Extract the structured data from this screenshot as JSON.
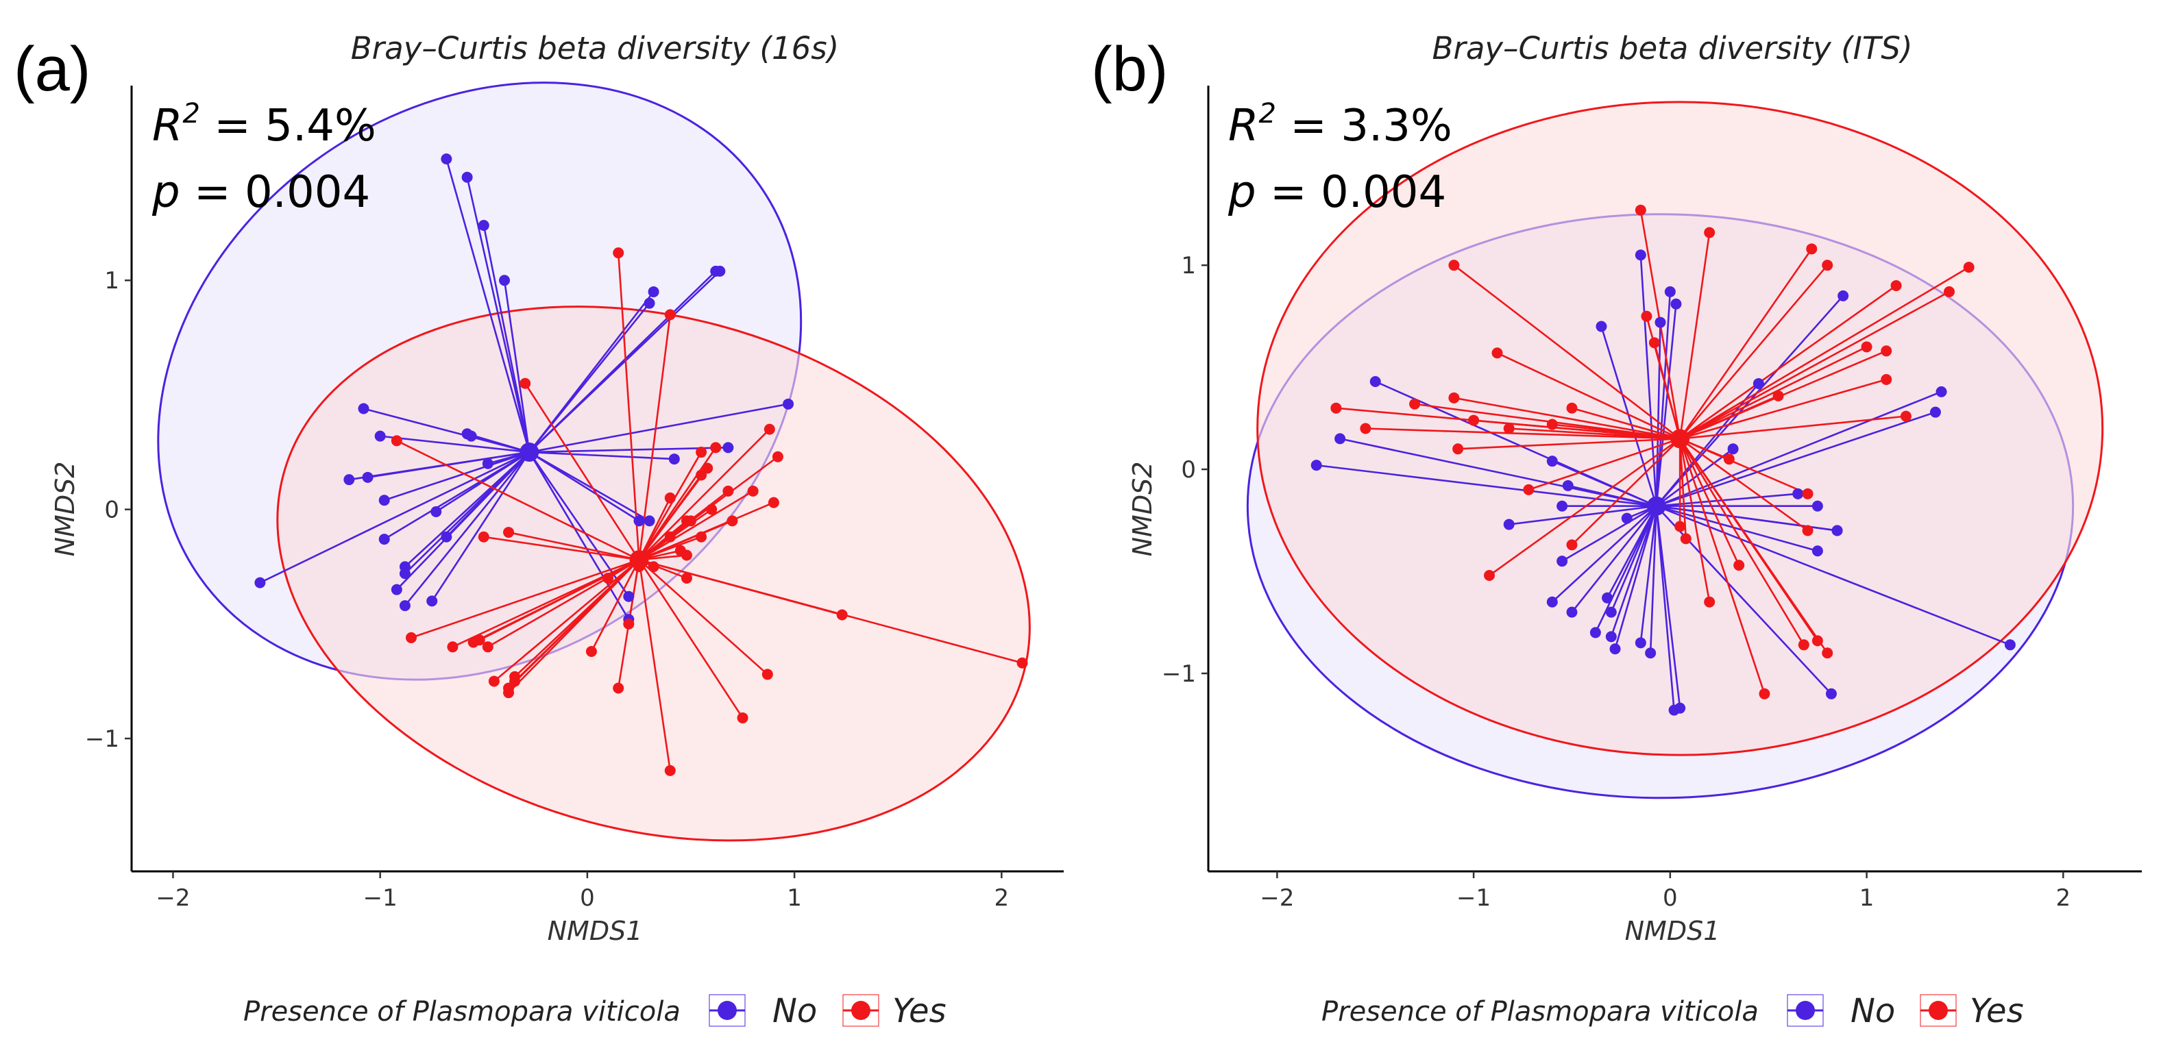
{
  "colors": {
    "no": "#4B22E0",
    "yes": "#F0171B",
    "no_fill": "#E8E6FA",
    "yes_fill": "#FBDCDD"
  },
  "chart_data": [
    {
      "panel": "(a)",
      "type": "scatter",
      "title": "Bray–Curtis beta diversity (16s)",
      "xlabel": "NMDS1",
      "ylabel": "NMDS2",
      "stat_r2_prefix": "R",
      "stat_r2_exp": "2",
      "stat_r2_value": " = 5.4%",
      "stat_p_prefix": "p",
      "stat_p_value": " = 0.004",
      "xlim": [
        -2.2,
        2.3
      ],
      "ylim": [
        -1.58,
        1.85
      ],
      "xticks": [
        -2,
        -1,
        0,
        1,
        2
      ],
      "yticks": [
        -1,
        0,
        1
      ],
      "groups": [
        {
          "name": "No",
          "centroid": [
            -0.28,
            0.25
          ],
          "ellipse": {
            "cx": -0.52,
            "cy": 0.56,
            "rx": 1.65,
            "ry": 1.2,
            "angle_deg": 35
          },
          "points": [
            [
              -0.68,
              1.53
            ],
            [
              -0.58,
              1.45
            ],
            [
              -0.5,
              1.24
            ],
            [
              -0.4,
              1.0
            ],
            [
              0.32,
              0.95
            ],
            [
              0.3,
              0.9
            ],
            [
              0.62,
              1.04
            ],
            [
              0.64,
              1.04
            ],
            [
              -1.08,
              0.44
            ],
            [
              -1.0,
              0.32
            ],
            [
              -0.58,
              0.33
            ],
            [
              -0.56,
              0.32
            ],
            [
              -1.06,
              0.14
            ],
            [
              -1.15,
              0.13
            ],
            [
              -0.98,
              0.04
            ],
            [
              -0.73,
              -0.01
            ],
            [
              -0.98,
              -0.13
            ],
            [
              -0.68,
              -0.12
            ],
            [
              -0.88,
              -0.25
            ],
            [
              -0.88,
              -0.28
            ],
            [
              -0.92,
              -0.35
            ],
            [
              -0.88,
              -0.42
            ],
            [
              -0.75,
              -0.4
            ],
            [
              -1.58,
              -0.32
            ],
            [
              -0.48,
              0.2
            ],
            [
              0.68,
              0.27
            ],
            [
              0.97,
              0.46
            ],
            [
              0.25,
              -0.05
            ],
            [
              0.3,
              -0.05
            ],
            [
              0.2,
              -0.38
            ],
            [
              0.2,
              -0.48
            ],
            [
              0.42,
              0.22
            ]
          ]
        },
        {
          "name": "Yes",
          "centroid": [
            0.25,
            -0.22
          ],
          "ellipse": {
            "cx": 0.32,
            "cy": -0.28,
            "rx": 1.85,
            "ry": 1.12,
            "angle_deg": -15
          },
          "points": [
            [
              0.15,
              1.12
            ],
            [
              0.4,
              0.85
            ],
            [
              -0.3,
              0.55
            ],
            [
              -0.92,
              0.3
            ],
            [
              0.55,
              0.25
            ],
            [
              0.62,
              0.27
            ],
            [
              0.92,
              0.23
            ],
            [
              0.88,
              0.35
            ],
            [
              0.58,
              0.18
            ],
            [
              0.55,
              0.15
            ],
            [
              0.8,
              0.08
            ],
            [
              0.68,
              0.08
            ],
            [
              0.9,
              0.03
            ],
            [
              0.4,
              0.05
            ],
            [
              0.48,
              -0.05
            ],
            [
              0.5,
              -0.05
            ],
            [
              0.7,
              -0.05
            ],
            [
              0.6,
              0.0
            ],
            [
              0.55,
              -0.12
            ],
            [
              0.4,
              -0.12
            ],
            [
              0.45,
              -0.18
            ],
            [
              0.48,
              -0.2
            ],
            [
              0.25,
              -0.25
            ],
            [
              0.1,
              -0.3
            ],
            [
              -0.38,
              -0.1
            ],
            [
              -0.5,
              -0.12
            ],
            [
              0.32,
              -0.25
            ],
            [
              0.48,
              -0.3
            ],
            [
              -0.85,
              -0.56
            ],
            [
              -0.55,
              -0.58
            ],
            [
              -0.52,
              -0.57
            ],
            [
              -0.48,
              -0.6
            ],
            [
              -0.65,
              -0.6
            ],
            [
              -0.35,
              -0.73
            ],
            [
              -0.38,
              -0.78
            ],
            [
              -0.38,
              -0.8
            ],
            [
              -0.35,
              -0.75
            ],
            [
              -0.45,
              -0.75
            ],
            [
              0.2,
              -0.5
            ],
            [
              0.02,
              -0.62
            ],
            [
              0.15,
              -0.78
            ],
            [
              0.4,
              -1.14
            ],
            [
              0.75,
              -0.91
            ],
            [
              0.87,
              -0.72
            ],
            [
              1.23,
              -0.46
            ],
            [
              2.1,
              -0.67
            ]
          ]
        }
      ]
    },
    {
      "panel": "(b)",
      "type": "scatter",
      "title": "Bray–Curtis beta diversity (ITS)",
      "xlabel": "NMDS1",
      "ylabel": "NMDS2",
      "stat_r2_prefix": "R",
      "stat_r2_exp": "2",
      "stat_r2_value": " = 3.3%",
      "stat_p_prefix": "p",
      "stat_p_value": " = 0.004",
      "xlim": [
        -2.35,
        2.4
      ],
      "ylim": [
        -1.97,
        1.88
      ],
      "xticks": [
        -2,
        -1,
        0,
        1,
        2
      ],
      "yticks": [
        -1,
        0,
        1
      ],
      "groups": [
        {
          "name": "No",
          "centroid": [
            -0.07,
            -0.18
          ],
          "ellipse": {
            "cx": -0.05,
            "cy": -0.18,
            "rx": 2.1,
            "ry": 1.43,
            "angle_deg": 0
          },
          "points": [
            [
              -1.8,
              0.02
            ],
            [
              -1.68,
              0.15
            ],
            [
              -1.5,
              0.43
            ],
            [
              -0.82,
              -0.27
            ],
            [
              -0.55,
              -0.18
            ],
            [
              -0.55,
              -0.45
            ],
            [
              -0.5,
              -0.7
            ],
            [
              -0.6,
              -0.65
            ],
            [
              -0.38,
              -0.8
            ],
            [
              -0.3,
              -0.82
            ],
            [
              -0.28,
              -0.88
            ],
            [
              -0.32,
              -0.63
            ],
            [
              -0.3,
              -0.7
            ],
            [
              -0.15,
              -0.85
            ],
            [
              -0.1,
              -0.9
            ],
            [
              0.02,
              -1.18
            ],
            [
              0.05,
              -1.17
            ],
            [
              -0.35,
              0.7
            ],
            [
              -0.15,
              1.05
            ],
            [
              -0.05,
              0.72
            ],
            [
              0.0,
              0.87
            ],
            [
              0.03,
              0.81
            ],
            [
              0.32,
              0.1
            ],
            [
              0.45,
              0.42
            ],
            [
              0.88,
              0.85
            ],
            [
              0.85,
              -0.3
            ],
            [
              0.75,
              -0.4
            ],
            [
              0.75,
              -0.18
            ],
            [
              0.85,
              -0.3
            ],
            [
              0.82,
              -1.1
            ],
            [
              1.73,
              -0.86
            ],
            [
              1.35,
              0.28
            ],
            [
              1.38,
              0.38
            ],
            [
              0.65,
              -0.12
            ],
            [
              -0.52,
              -0.08
            ],
            [
              -0.22,
              -0.24
            ],
            [
              -0.6,
              0.04
            ]
          ]
        },
        {
          "name": "Yes",
          "centroid": [
            0.05,
            0.15
          ],
          "ellipse": {
            "cx": 0.05,
            "cy": 0.2,
            "rx": 2.15,
            "ry": 1.6,
            "angle_deg": 0
          },
          "points": [
            [
              -1.7,
              0.3
            ],
            [
              -1.1,
              1.0
            ],
            [
              -1.3,
              0.32
            ],
            [
              -1.1,
              0.35
            ],
            [
              -1.0,
              0.24
            ],
            [
              -1.55,
              0.2
            ],
            [
              -1.08,
              0.1
            ],
            [
              -0.82,
              0.2
            ],
            [
              -0.6,
              0.22
            ],
            [
              -0.5,
              0.3
            ],
            [
              -0.88,
              0.57
            ],
            [
              -0.72,
              -0.1
            ],
            [
              -0.92,
              -0.52
            ],
            [
              -0.5,
              -0.37
            ],
            [
              -0.15,
              1.27
            ],
            [
              -0.12,
              0.75
            ],
            [
              -0.08,
              0.62
            ],
            [
              0.2,
              1.16
            ],
            [
              0.3,
              0.05
            ],
            [
              0.08,
              -0.34
            ],
            [
              0.05,
              -0.28
            ],
            [
              0.2,
              -0.65
            ],
            [
              0.35,
              -0.47
            ],
            [
              0.48,
              -1.1
            ],
            [
              0.68,
              -0.86
            ],
            [
              0.75,
              -0.84
            ],
            [
              0.8,
              -0.9
            ],
            [
              0.7,
              -0.3
            ],
            [
              0.7,
              -0.12
            ],
            [
              0.72,
              1.08
            ],
            [
              0.8,
              1.0
            ],
            [
              1.0,
              0.6
            ],
            [
              1.15,
              0.9
            ],
            [
              1.1,
              0.58
            ],
            [
              1.1,
              0.44
            ],
            [
              1.2,
              0.26
            ],
            [
              1.42,
              0.87
            ],
            [
              1.52,
              0.99
            ],
            [
              0.55,
              0.36
            ]
          ]
        }
      ]
    }
  ],
  "legend": {
    "title": "Presence of Plasmopara viticola",
    "items": [
      "No",
      "Yes"
    ]
  }
}
